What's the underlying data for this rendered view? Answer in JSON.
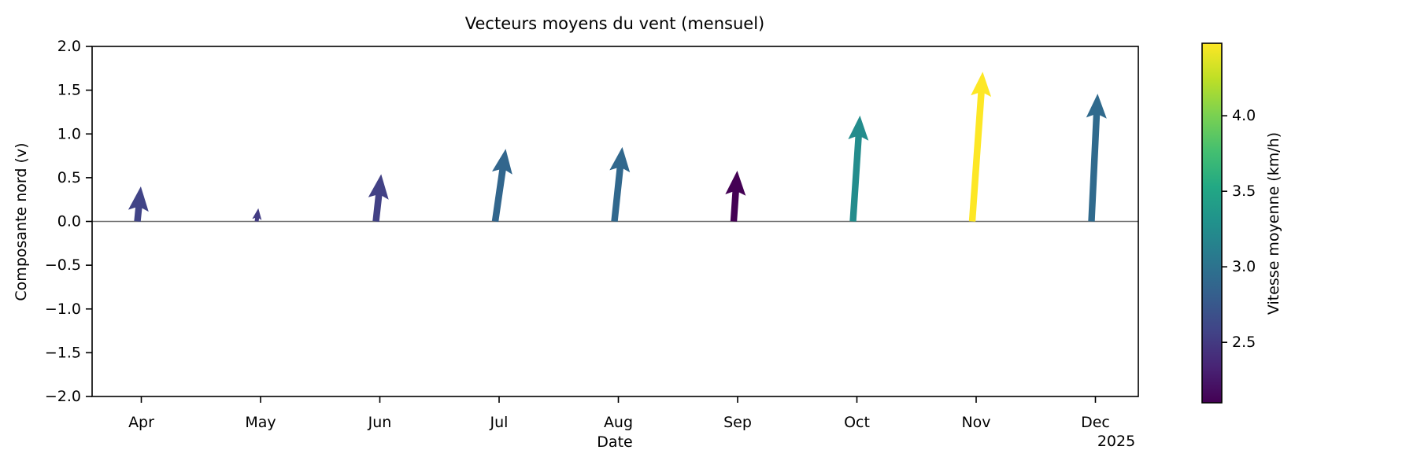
{
  "chart_data": {
    "type": "quiver",
    "title": "Vecteurs moyens du vent (mensuel)",
    "xlabel": "Date",
    "ylabel": "Composante nord (v)",
    "year_label": "2025",
    "ylim": [
      -2.0,
      2.0
    ],
    "y_ticks": [
      2.0,
      1.5,
      1.0,
      0.5,
      0.0,
      -0.5,
      -1.0,
      -1.5,
      -2.0
    ],
    "grid": false,
    "zero_line_color": "#707070",
    "months": [
      {
        "label": "Apr",
        "u": 0.04,
        "v": 0.4,
        "speed": 2.58
      },
      {
        "label": "May",
        "u": 0.02,
        "v": 0.15,
        "speed": 2.52
      },
      {
        "label": "Jun",
        "u": 0.06,
        "v": 0.54,
        "speed": 2.55
      },
      {
        "label": "Jul",
        "u": 0.12,
        "v": 0.83,
        "speed": 2.88
      },
      {
        "label": "Aug",
        "u": 0.09,
        "v": 0.85,
        "speed": 2.9
      },
      {
        "label": "Sep",
        "u": 0.04,
        "v": 0.58,
        "speed": 2.1
      },
      {
        "label": "Oct",
        "u": 0.08,
        "v": 1.21,
        "speed": 3.24
      },
      {
        "label": "Nov",
        "u": 0.12,
        "v": 1.71,
        "speed": 4.48
      },
      {
        "label": "Dec",
        "u": 0.07,
        "v": 1.46,
        "speed": 2.92
      }
    ],
    "colorbar": {
      "label": "Vitesse moyenne (km/h)",
      "vmin": 2.1,
      "vmax": 4.48,
      "ticks": [
        2.5,
        3.0,
        3.5,
        4.0
      ],
      "colormap": "viridis",
      "stops": [
        [
          0.0,
          "#440154"
        ],
        [
          0.1,
          "#482475"
        ],
        [
          0.2,
          "#414487"
        ],
        [
          0.3,
          "#355f8d"
        ],
        [
          0.4,
          "#2a788e"
        ],
        [
          0.5,
          "#21918c"
        ],
        [
          0.6,
          "#22a884"
        ],
        [
          0.7,
          "#44bf70"
        ],
        [
          0.8,
          "#7ad151"
        ],
        [
          0.9,
          "#bddf26"
        ],
        [
          1.0,
          "#fde725"
        ]
      ]
    }
  }
}
